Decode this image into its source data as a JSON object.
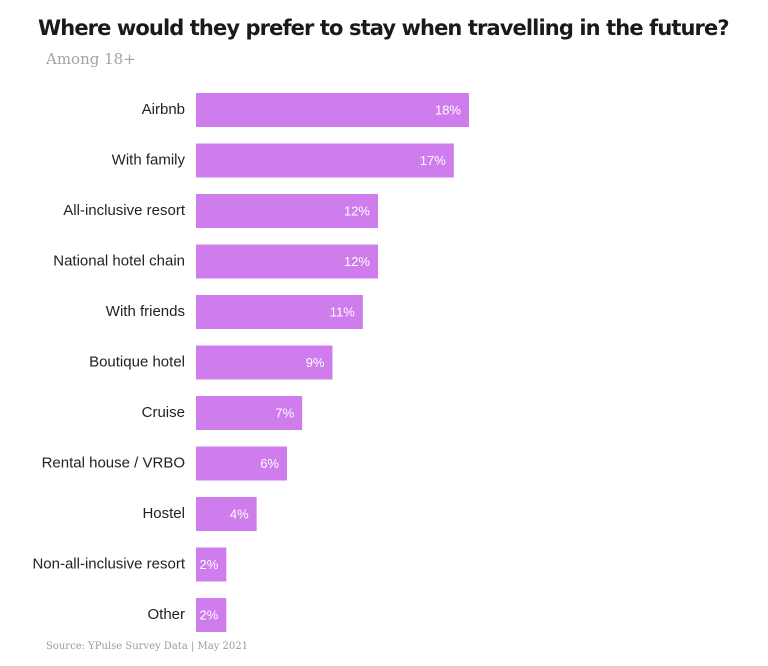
{
  "chart_data": {
    "type": "bar",
    "orientation": "horizontal",
    "title": "Where would they prefer to stay when travelling in the future?",
    "subtitle": "Among 18+",
    "categories": [
      "Airbnb",
      "With family",
      "All-inclusive resort",
      "National hotel chain",
      "With friends",
      "Boutique hotel",
      "Cruise",
      "Rental house / VRBO",
      "Hostel",
      "Non-all-inclusive resort",
      "Other"
    ],
    "values": [
      18,
      17,
      12,
      12,
      11,
      9,
      7,
      6,
      4,
      2,
      2
    ],
    "value_labels": [
      "18%",
      "17%",
      "12%",
      "12%",
      "11%",
      "9%",
      "7%",
      "6%",
      "4%",
      "2%",
      "2%"
    ],
    "bar_color": "#cf7ded",
    "value_label_color": "#ffffff",
    "xlim": [
      0,
      18
    ],
    "grid": false,
    "legend": "none"
  },
  "source": "Source: YPulse Survey Data | May 2021"
}
